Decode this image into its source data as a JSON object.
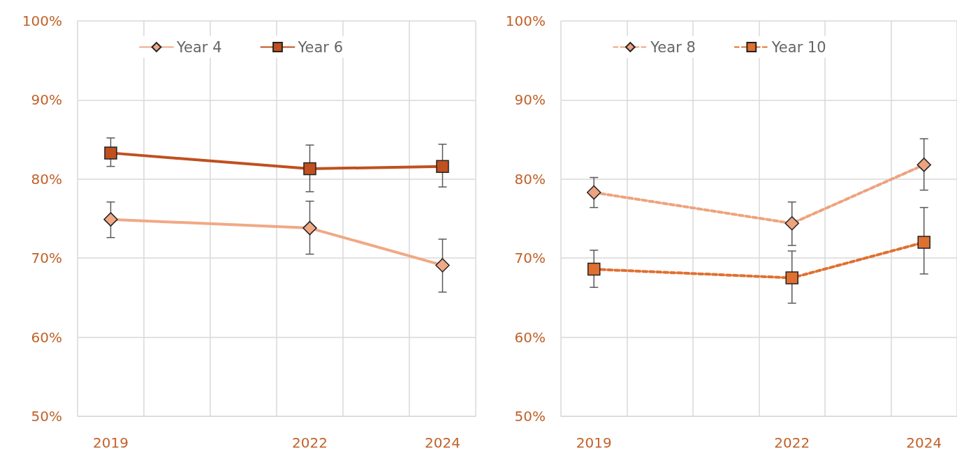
{
  "chart_data": [
    {
      "type": "line",
      "categories": [
        "2019",
        null,
        null,
        "2022",
        null,
        "2024"
      ],
      "series": [
        {
          "name": "Year 4",
          "color": "#f0a985",
          "marker": "diamond",
          "line_style": "solid",
          "values": [
            74.9,
            null,
            null,
            73.8,
            null,
            69.1
          ],
          "errors": [
            [
              72.6,
              77.1
            ],
            null,
            null,
            [
              70.5,
              77.2
            ],
            null,
            [
              65.7,
              72.4
            ]
          ]
        },
        {
          "name": "Year 6",
          "color": "#c0501f",
          "marker": "square",
          "line_style": "solid",
          "values": [
            83.3,
            null,
            null,
            81.3,
            null,
            81.6
          ],
          "errors": [
            [
              81.6,
              85.2
            ],
            null,
            null,
            [
              78.4,
              84.3
            ],
            null,
            [
              79.0,
              84.4
            ]
          ]
        }
      ],
      "ylim": [
        50,
        100
      ],
      "yticks": [
        {
          "value": 50,
          "label": "50%"
        },
        {
          "value": 60,
          "label": "60%"
        },
        {
          "value": 70,
          "label": "70%"
        },
        {
          "value": 80,
          "label": "80%"
        },
        {
          "value": 90,
          "label": "90%"
        },
        {
          "value": 100,
          "label": "100%"
        }
      ],
      "grid": true,
      "legend": "top"
    },
    {
      "type": "line",
      "categories": [
        "2019",
        null,
        null,
        "2022",
        null,
        "2024"
      ],
      "series": [
        {
          "name": "Year 8",
          "color": "#eda37e",
          "marker": "diamond",
          "line_style": "dashed",
          "values": [
            78.3,
            null,
            null,
            74.4,
            null,
            81.8
          ],
          "errors": [
            [
              76.4,
              80.2
            ],
            null,
            null,
            [
              71.6,
              77.1
            ],
            null,
            [
              78.6,
              85.1
            ]
          ]
        },
        {
          "name": "Year 10",
          "color": "#e07030",
          "marker": "square",
          "line_style": "dashed",
          "values": [
            68.6,
            null,
            null,
            67.5,
            null,
            72.0
          ],
          "errors": [
            [
              66.3,
              71.0
            ],
            null,
            null,
            [
              64.3,
              70.9
            ],
            null,
            [
              68.0,
              76.4
            ]
          ]
        }
      ],
      "ylim": [
        50,
        100
      ],
      "yticks": [
        {
          "value": 50,
          "label": "50%"
        },
        {
          "value": 60,
          "label": "60%"
        },
        {
          "value": 70,
          "label": "70%"
        },
        {
          "value": 80,
          "label": "80%"
        },
        {
          "value": 90,
          "label": "90%"
        },
        {
          "value": 100,
          "label": "100%"
        }
      ],
      "grid": true,
      "legend": "top"
    }
  ]
}
